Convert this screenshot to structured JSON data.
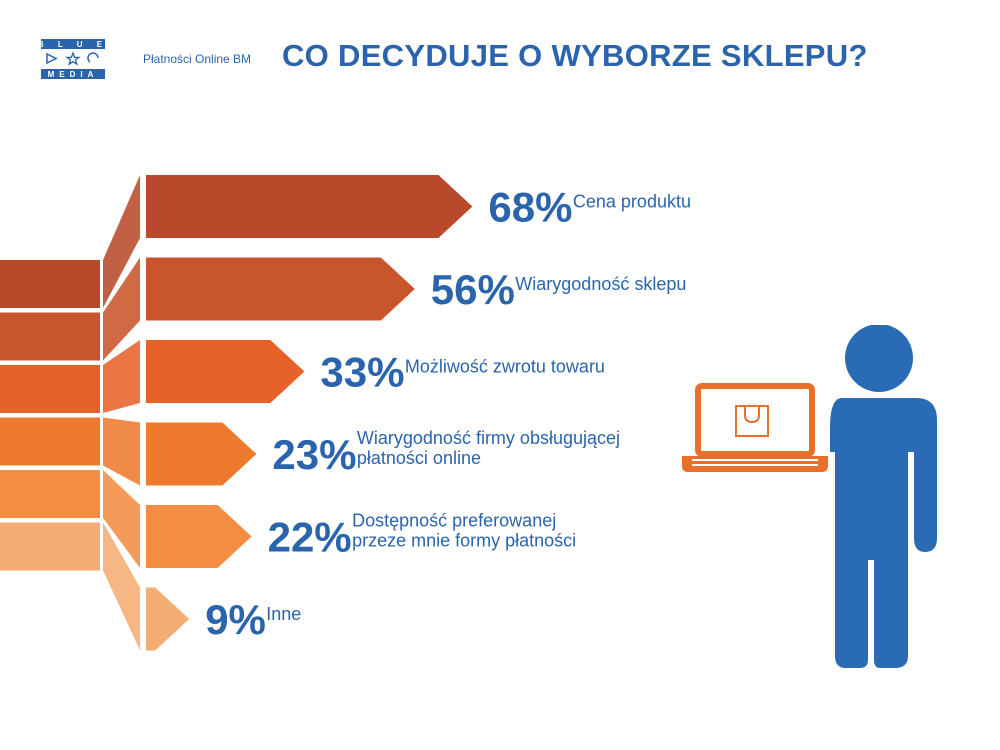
{
  "header": {
    "logo_lines": [
      "BLUE",
      "▷☆↺",
      "MEDIA"
    ],
    "brand": "Płatności Online BM",
    "title": "CO DECYDUJE O WYBORZE SKLEPU?"
  },
  "colors": {
    "text": "#2a64ad",
    "person": "#2a6bb5",
    "laptop": "#e8702a",
    "bars": [
      "#b84a2b",
      "#c9552b",
      "#e6622a",
      "#ee7a2e",
      "#f28d43",
      "#f5ad73"
    ]
  },
  "chart_data": {
    "type": "bar",
    "title": "CO DECYDUJE O WYBORZE SKLEPU?",
    "unit": "%",
    "categories": [
      [
        "Cena produktu"
      ],
      [
        "Wiarygodność sklepu"
      ],
      [
        "Możliwość zwrotu towaru"
      ],
      [
        "Wiarygodność firmy obsługującej",
        "płatności online"
      ],
      [
        "Dostępność preferowanej",
        "przeze mnie formy płatności"
      ],
      [
        "Inne"
      ]
    ],
    "values": [
      68,
      56,
      33,
      23,
      22,
      9
    ],
    "value_labels": [
      "68%",
      "56%",
      "33%",
      "23%",
      "22%",
      "9%"
    ]
  },
  "illustration": {
    "person_icon": "person-with-laptop-icon",
    "bag_icon": "shopping-bag-icon"
  }
}
